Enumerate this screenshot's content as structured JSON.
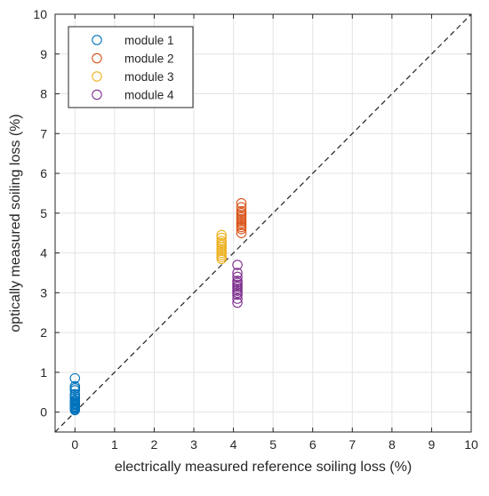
{
  "chart_data": {
    "type": "scatter",
    "title": "",
    "xlabel": "electrically measured reference soiling loss (%)",
    "ylabel": "optically measured soiling loss (%)",
    "xlim": [
      -0.5,
      10
    ],
    "ylim": [
      -0.5,
      10
    ],
    "xticks": [
      "0",
      "1",
      "2",
      "3",
      "4",
      "5",
      "6",
      "7",
      "8",
      "9",
      "10"
    ],
    "yticks": [
      "0",
      "1",
      "2",
      "3",
      "4",
      "5",
      "6",
      "7",
      "8",
      "9",
      "10"
    ],
    "grid": true,
    "legend_position": "top-left",
    "reference_line": {
      "style": "dashed",
      "color": "#222222",
      "from": [
        -0.5,
        -0.5
      ],
      "to": [
        10,
        10
      ]
    },
    "series": [
      {
        "name": "module 1",
        "color": "#0072BD",
        "points": [
          [
            0,
            0.05
          ],
          [
            0,
            0.08
          ],
          [
            0,
            0.1
          ],
          [
            0,
            0.12
          ],
          [
            0,
            0.15
          ],
          [
            0,
            0.18
          ],
          [
            0,
            0.2
          ],
          [
            0,
            0.22
          ],
          [
            0,
            0.25
          ],
          [
            0,
            0.28
          ],
          [
            0,
            0.3
          ],
          [
            0,
            0.35
          ],
          [
            0,
            0.4
          ],
          [
            0,
            0.45
          ],
          [
            0,
            0.55
          ],
          [
            0,
            0.6
          ],
          [
            0,
            0.65
          ],
          [
            0,
            0.85
          ]
        ]
      },
      {
        "name": "module 2",
        "color": "#D95319",
        "points": [
          [
            4.2,
            4.5
          ],
          [
            4.2,
            4.6
          ],
          [
            4.2,
            4.65
          ],
          [
            4.2,
            4.7
          ],
          [
            4.2,
            4.75
          ],
          [
            4.2,
            4.8
          ],
          [
            4.2,
            4.85
          ],
          [
            4.2,
            4.9
          ],
          [
            4.2,
            4.95
          ],
          [
            4.2,
            5.0
          ],
          [
            4.2,
            5.05
          ],
          [
            4.2,
            5.15
          ],
          [
            4.2,
            5.25
          ]
        ]
      },
      {
        "name": "module 3",
        "color": "#EDB120",
        "points": [
          [
            3.7,
            3.85
          ],
          [
            3.7,
            3.9
          ],
          [
            3.7,
            3.95
          ],
          [
            3.7,
            4.0
          ],
          [
            3.7,
            4.05
          ],
          [
            3.7,
            4.1
          ],
          [
            3.7,
            4.15
          ],
          [
            3.7,
            4.2
          ],
          [
            3.7,
            4.25
          ],
          [
            3.7,
            4.3
          ],
          [
            3.7,
            4.38
          ],
          [
            3.7,
            4.45
          ]
        ]
      },
      {
        "name": "module 4",
        "color": "#7E2F8E",
        "points": [
          [
            4.1,
            2.75
          ],
          [
            4.1,
            2.85
          ],
          [
            4.1,
            2.95
          ],
          [
            4.1,
            3.0
          ],
          [
            4.1,
            3.05
          ],
          [
            4.1,
            3.1
          ],
          [
            4.1,
            3.15
          ],
          [
            4.1,
            3.2
          ],
          [
            4.1,
            3.25
          ],
          [
            4.1,
            3.3
          ],
          [
            4.1,
            3.4
          ],
          [
            4.1,
            3.5
          ],
          [
            4.1,
            3.7
          ]
        ]
      }
    ]
  }
}
